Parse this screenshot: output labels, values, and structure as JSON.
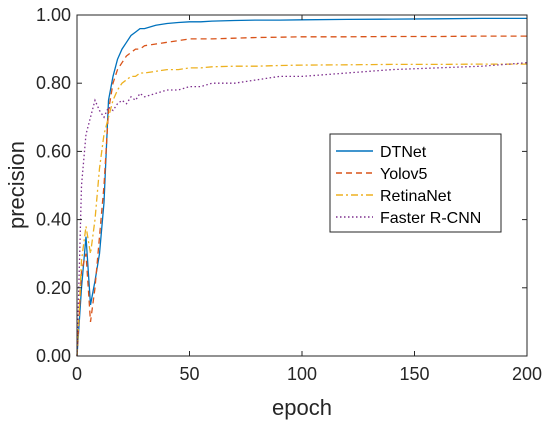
{
  "chart_data": {
    "type": "line",
    "xlabel": "epoch",
    "ylabel": "precision",
    "xlim": [
      0,
      200
    ],
    "ylim": [
      0,
      1
    ],
    "x_ticks": [
      0,
      50,
      100,
      150,
      200
    ],
    "x_tick_labels": [
      "0",
      "50",
      "100",
      "150",
      "200"
    ],
    "y_ticks": [
      0,
      0.2,
      0.4,
      0.6,
      0.8,
      1.0
    ],
    "y_tick_labels": [
      "0.00",
      "0.20",
      "0.40",
      "0.60",
      "0.80",
      "1.00"
    ],
    "grid": false,
    "legend_position": "center-right",
    "series": [
      {
        "name": "DTNet",
        "color": "#0072BD",
        "dash": "solid",
        "x": [
          0,
          2,
          4,
          6,
          8,
          10,
          12,
          14,
          16,
          18,
          20,
          22,
          24,
          26,
          28,
          30,
          35,
          40,
          45,
          50,
          55,
          60,
          70,
          80,
          90,
          100,
          120,
          140,
          160,
          180,
          200
        ],
        "y": [
          0.0,
          0.2,
          0.35,
          0.15,
          0.22,
          0.3,
          0.45,
          0.75,
          0.82,
          0.87,
          0.9,
          0.92,
          0.94,
          0.95,
          0.96,
          0.96,
          0.97,
          0.975,
          0.978,
          0.98,
          0.98,
          0.982,
          0.984,
          0.985,
          0.985,
          0.986,
          0.987,
          0.988,
          0.989,
          0.99,
          0.99
        ]
      },
      {
        "name": "Yolov5",
        "color": "#D95319",
        "dash": "dashed",
        "x": [
          0,
          2,
          4,
          6,
          8,
          10,
          12,
          14,
          16,
          18,
          20,
          22,
          24,
          26,
          28,
          30,
          35,
          40,
          45,
          50,
          55,
          60,
          70,
          80,
          90,
          100,
          120,
          140,
          160,
          180,
          200
        ],
        "y": [
          0.0,
          0.25,
          0.3,
          0.1,
          0.2,
          0.35,
          0.5,
          0.72,
          0.8,
          0.84,
          0.86,
          0.88,
          0.89,
          0.9,
          0.9,
          0.91,
          0.915,
          0.92,
          0.925,
          0.93,
          0.93,
          0.93,
          0.932,
          0.934,
          0.935,
          0.936,
          0.936,
          0.937,
          0.937,
          0.938,
          0.938
        ]
      },
      {
        "name": "RetinaNet",
        "color": "#EDB120",
        "dash": "dashdot",
        "x": [
          0,
          2,
          4,
          6,
          8,
          10,
          12,
          14,
          16,
          18,
          20,
          22,
          24,
          26,
          28,
          30,
          35,
          40,
          45,
          50,
          55,
          60,
          70,
          80,
          90,
          100,
          120,
          140,
          160,
          180,
          200
        ],
        "y": [
          0.0,
          0.28,
          0.38,
          0.3,
          0.4,
          0.55,
          0.65,
          0.7,
          0.75,
          0.78,
          0.8,
          0.81,
          0.82,
          0.82,
          0.83,
          0.83,
          0.835,
          0.84,
          0.84,
          0.845,
          0.845,
          0.848,
          0.85,
          0.85,
          0.852,
          0.853,
          0.854,
          0.855,
          0.855,
          0.856,
          0.856
        ]
      },
      {
        "name": "Faster R-CNN",
        "color": "#7E2F8E",
        "dash": "dotted",
        "x": [
          0,
          2,
          4,
          6,
          8,
          10,
          12,
          14,
          16,
          18,
          20,
          22,
          24,
          26,
          28,
          30,
          35,
          40,
          45,
          50,
          55,
          60,
          70,
          80,
          90,
          100,
          120,
          140,
          160,
          180,
          200
        ],
        "y": [
          0.0,
          0.5,
          0.65,
          0.7,
          0.75,
          0.72,
          0.7,
          0.73,
          0.72,
          0.74,
          0.75,
          0.74,
          0.76,
          0.75,
          0.77,
          0.76,
          0.77,
          0.78,
          0.78,
          0.79,
          0.79,
          0.8,
          0.8,
          0.81,
          0.82,
          0.82,
          0.83,
          0.84,
          0.845,
          0.85,
          0.86
        ]
      }
    ]
  }
}
